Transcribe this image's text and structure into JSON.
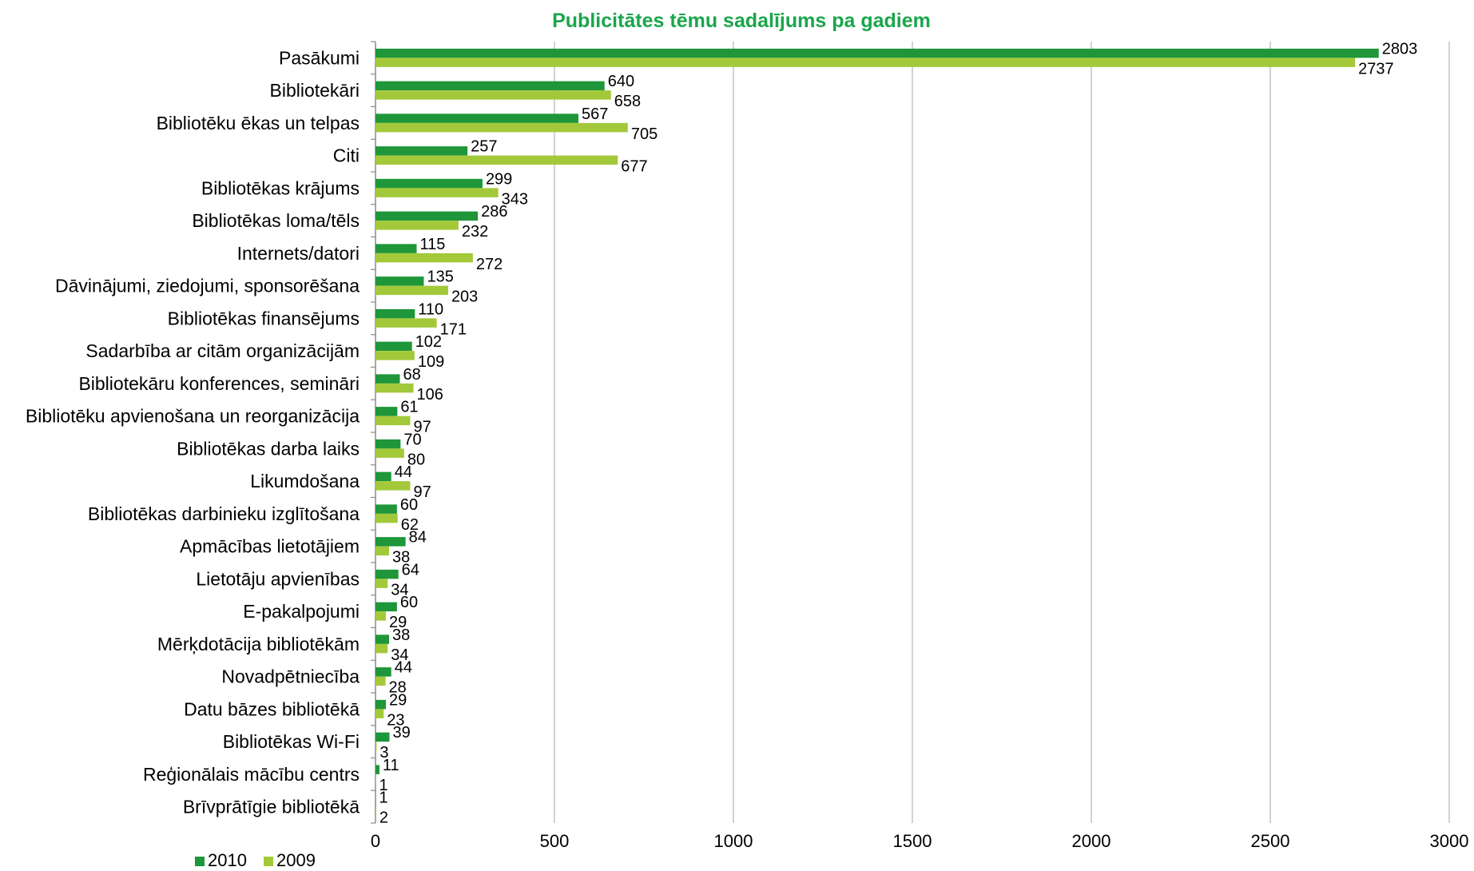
{
  "chart_data": {
    "type": "bar",
    "orientation": "horizontal",
    "title": "Publicitātes tēmu sadalījums pa gadiem",
    "title_color": "#1aa64b",
    "categories": [
      "Pasākumi",
      "Bibliotekāri",
      "Bibliotēku ēkas un telpas",
      "Citi",
      "Bibliotēkas krājums",
      "Bibliotēkas loma/tēls",
      "Internets/datori",
      "Dāvinājumi, ziedojumi, sponsorēšana",
      "Bibliotēkas finansējums",
      "Sadarbība ar citām organizācijām",
      "Bibliotekāru konferences, semināri",
      "Bibliotēku apvienošana un reorganizācija",
      "Bibliotēkas darba laiks",
      "Likumdošana",
      "Bibliotēkas darbinieku izglītošana",
      "Apmācības lietotājiem",
      "Lietotāju apvienības",
      "E-pakalpojumi",
      "Mērķdotācija bibliotēkām",
      "Novadpētniecība",
      "Datu bāzes bibliotēkā",
      "Bibliotēkas Wi-Fi",
      "Reģionālais mācību centrs",
      "Brīvprātīgie bibliotēkā"
    ],
    "series": [
      {
        "name": "2010",
        "color": "#1e9639",
        "values": [
          2803,
          640,
          567,
          257,
          299,
          286,
          115,
          135,
          110,
          102,
          68,
          61,
          70,
          44,
          60,
          84,
          64,
          60,
          38,
          44,
          29,
          39,
          11,
          1
        ]
      },
      {
        "name": "2009",
        "color": "#a3c93a",
        "values": [
          2737,
          658,
          705,
          677,
          343,
          232,
          272,
          203,
          171,
          109,
          106,
          97,
          80,
          97,
          62,
          38,
          34,
          29,
          34,
          28,
          23,
          3,
          1,
          2
        ]
      }
    ],
    "xlim": [
      0,
      3000
    ],
    "xticks": [
      "0",
      "500",
      "1000",
      "1500",
      "2000",
      "2500",
      "3000"
    ],
    "grid": "vertical",
    "grid_color": "#b3b3b3",
    "legend": "bottom-left"
  }
}
